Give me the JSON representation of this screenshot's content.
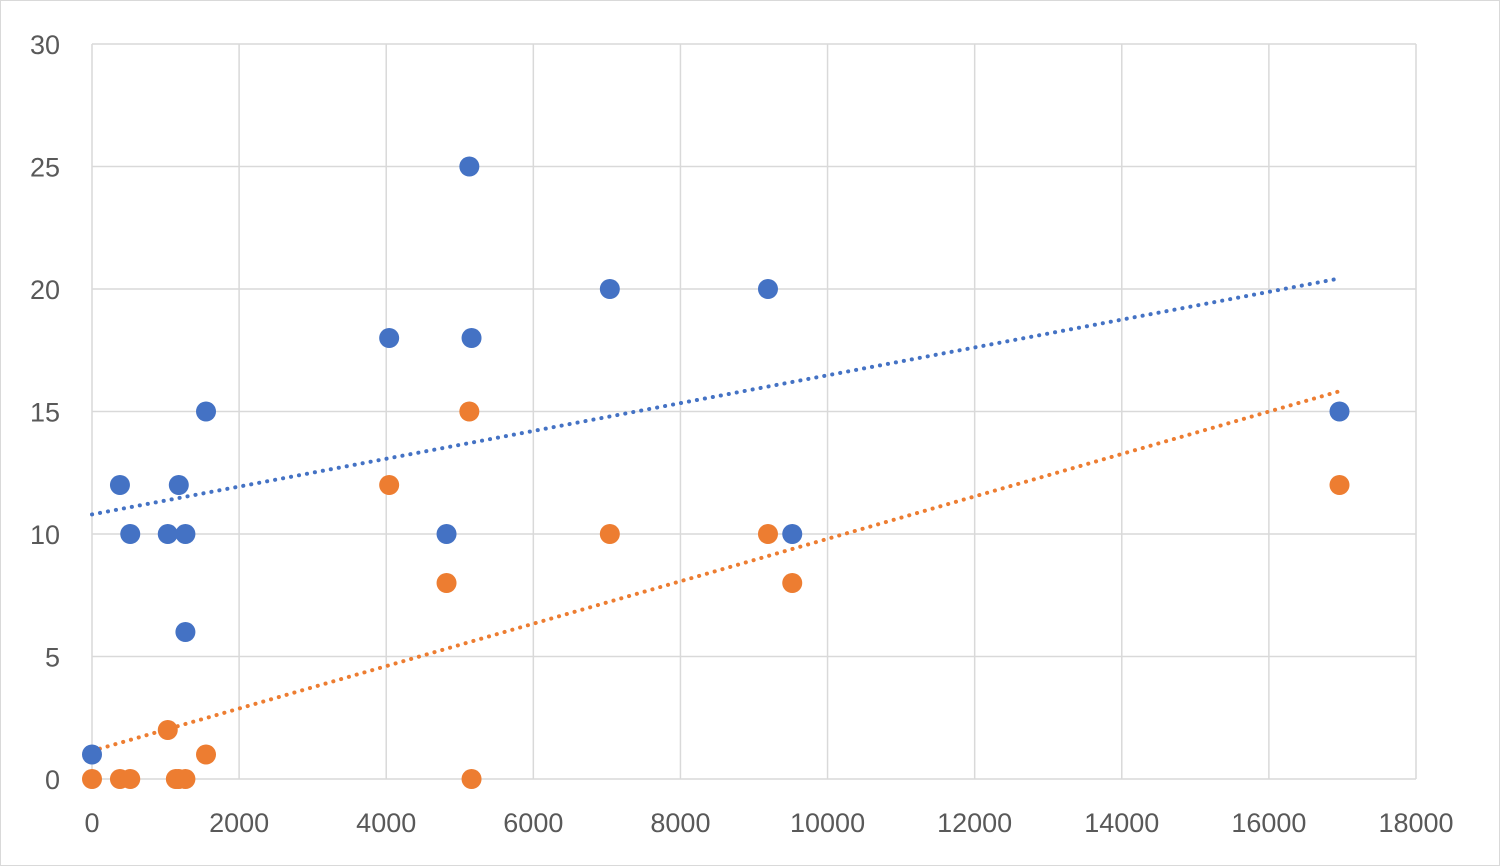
{
  "chart_data": {
    "type": "scatter",
    "title": "",
    "xlabel": "",
    "ylabel": "",
    "xlim": [
      0,
      18000
    ],
    "ylim": [
      0,
      30
    ],
    "x_ticks": [
      "0",
      "2000",
      "4000",
      "6000",
      "8000",
      "10000",
      "12000",
      "14000",
      "16000",
      "18000"
    ],
    "y_ticks": [
      "0",
      "5",
      "10",
      "15",
      "20",
      "25",
      "30"
    ],
    "grid": true,
    "legend": "none",
    "series": [
      {
        "color": "#4472C4",
        "trendline": "linear",
        "points": [
          [
            0,
            1
          ],
          [
            380,
            12
          ],
          [
            520,
            10
          ],
          [
            1030,
            10
          ],
          [
            1180,
            12
          ],
          [
            1270,
            10
          ],
          [
            1270,
            6
          ],
          [
            1550,
            15
          ],
          [
            4040,
            18
          ],
          [
            4820,
            10
          ],
          [
            5130,
            25
          ],
          [
            5160,
            18
          ],
          [
            7040,
            20
          ],
          [
            9190,
            20
          ],
          [
            9520,
            10
          ],
          [
            16960,
            15
          ]
        ]
      },
      {
        "color": "#ED7D31",
        "trendline": "linear",
        "points": [
          [
            0,
            0
          ],
          [
            380,
            0
          ],
          [
            520,
            0
          ],
          [
            1030,
            2
          ],
          [
            1140,
            0
          ],
          [
            1180,
            0
          ],
          [
            1270,
            0
          ],
          [
            1550,
            1
          ],
          [
            4040,
            12
          ],
          [
            4820,
            8
          ],
          [
            5130,
            15
          ],
          [
            5160,
            0
          ],
          [
            7040,
            10
          ],
          [
            9190,
            10
          ],
          [
            9520,
            8
          ],
          [
            16960,
            12
          ]
        ]
      }
    ]
  }
}
